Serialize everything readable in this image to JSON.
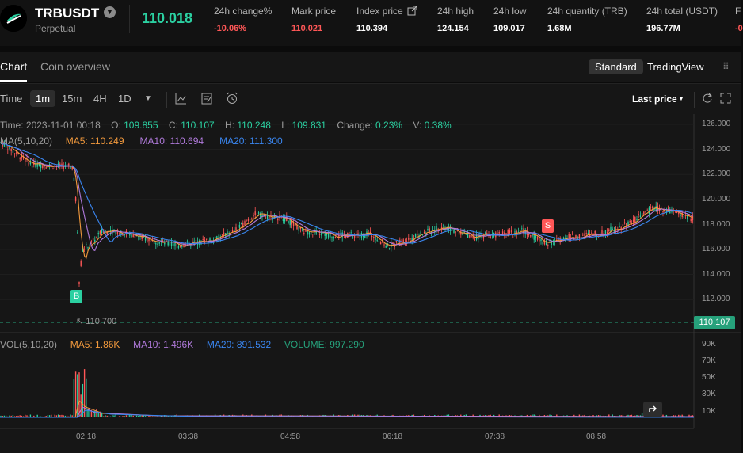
{
  "ticker": {
    "symbol": "TRBUSDT",
    "type": "Perpetual",
    "last_price": "110.018",
    "stats": [
      {
        "label": "24h change%",
        "value": "-10.06%"
      },
      {
        "label": "Mark price",
        "value": "110.021"
      },
      {
        "label": "Index price",
        "value": "110.394"
      },
      {
        "label": "24h high",
        "value": "124.154"
      },
      {
        "label": "24h low",
        "value": "109.017"
      },
      {
        "label": "24h quantity (TRB)",
        "value": "1.68M"
      },
      {
        "label": "24h total (USDT)",
        "value": "196.77M"
      },
      {
        "label": "F",
        "value": "-0"
      }
    ]
  },
  "tabs": [
    "Chart",
    "Coin overview"
  ],
  "views": [
    "Standard",
    "TradingView"
  ],
  "toolbar": {
    "intervals": [
      "Time",
      "1m",
      "15m",
      "4H",
      "1D"
    ],
    "price_type": "Last price"
  },
  "ohlc": {
    "time_label": "Time:",
    "time": "2023-11-01 00:18",
    "o_label": "O:",
    "o": "109.855",
    "c_label": "C:",
    "c": "110.107",
    "h_label": "H:",
    "h": "110.248",
    "l_label": "L:",
    "l": "109.831",
    "change_label": "Change:",
    "change": "0.23%",
    "v_label": "V:",
    "v": "0.38%"
  },
  "ma": {
    "label": "MA(5,10,20)",
    "ma5": "MA5: 110.249",
    "ma10": "MA10: 110.694",
    "ma20": "MA20: 111.300"
  },
  "vol": {
    "label": "VOL(5,10,20)",
    "ma5": "MA5: 1.86K",
    "ma10": "MA10: 1.496K",
    "ma20": "MA20: 891.532",
    "volume": "VOLUME: 997.290"
  },
  "chart": {
    "y_ticks": [
      "126.000",
      "124.000",
      "122.000",
      "120.000",
      "118.000",
      "116.000",
      "114.000",
      "112.000"
    ],
    "vol_ticks": [
      "90K",
      "70K",
      "50K",
      "30K",
      "10K"
    ],
    "x_ticks": [
      "02:18",
      "03:38",
      "04:58",
      "06:18",
      "07:38",
      "08:58"
    ],
    "current_price_tag": "110.107",
    "low_marker": "110.700",
    "buy_marker": "B",
    "sell_marker": "S"
  },
  "colors": {
    "up": "#2bd0a1",
    "down": "#ff5757",
    "ma5": "#f39a3d",
    "ma10": "#b07adb",
    "ma20": "#3a86f0"
  }
}
